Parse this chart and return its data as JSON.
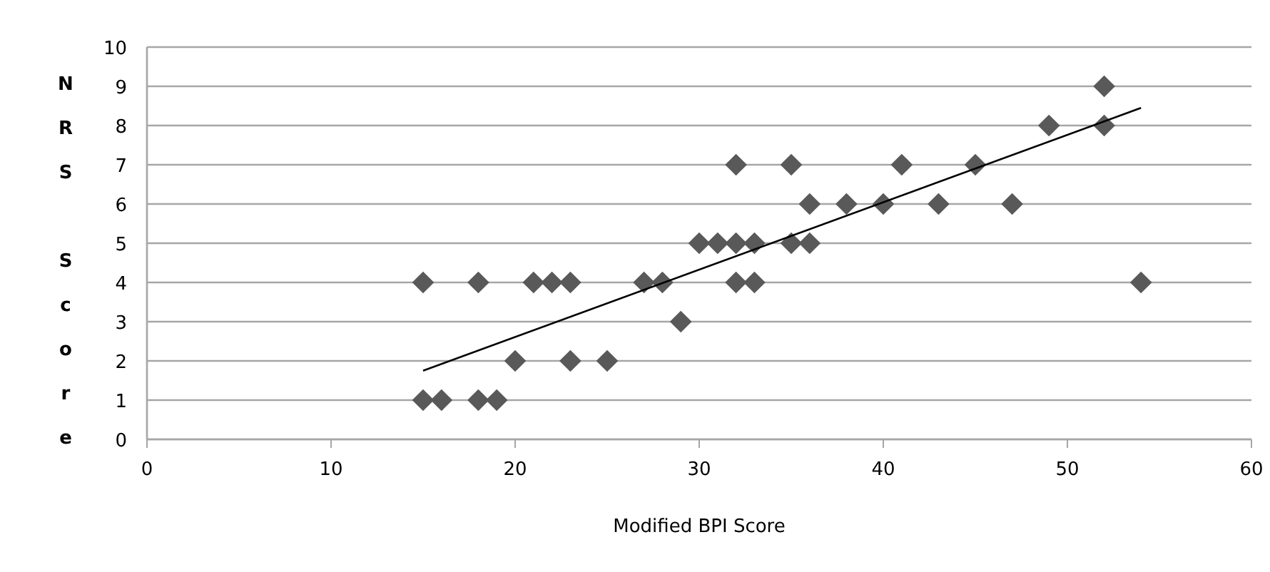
{
  "chart_data": {
    "type": "scatter",
    "xlabel": "Modified BPI Score",
    "ylabel": "NRS Score",
    "xlim": [
      0,
      60
    ],
    "xticks": [
      0,
      10,
      20,
      30,
      40,
      50,
      60
    ],
    "ylim": [
      0,
      10
    ],
    "yticks": [
      0,
      1,
      2,
      3,
      4,
      5,
      6,
      7,
      8,
      9,
      10
    ],
    "grid": "y",
    "series": [
      {
        "color": "#595959",
        "marker": "diamond",
        "x": [
          15,
          16,
          18,
          19,
          20,
          23,
          25,
          29,
          15,
          18,
          21,
          22,
          23,
          27,
          28,
          32,
          33,
          54,
          30,
          31,
          32,
          33,
          35,
          36,
          36,
          38,
          40,
          43,
          47,
          32,
          35,
          41,
          45,
          49,
          52,
          52
        ],
        "values": [
          1,
          1,
          1,
          1,
          2,
          2,
          2,
          3,
          4,
          4,
          4,
          4,
          4,
          4,
          4,
          4,
          4,
          4,
          5,
          5,
          5,
          5,
          5,
          5,
          6,
          6,
          6,
          6,
          6,
          7,
          7,
          7,
          7,
          8,
          8,
          9
        ]
      },
      {
        "type": "line",
        "color": "#000000",
        "x": [
          15,
          54
        ],
        "values": [
          1.75,
          8.45
        ],
        "marker": "none"
      }
    ]
  }
}
